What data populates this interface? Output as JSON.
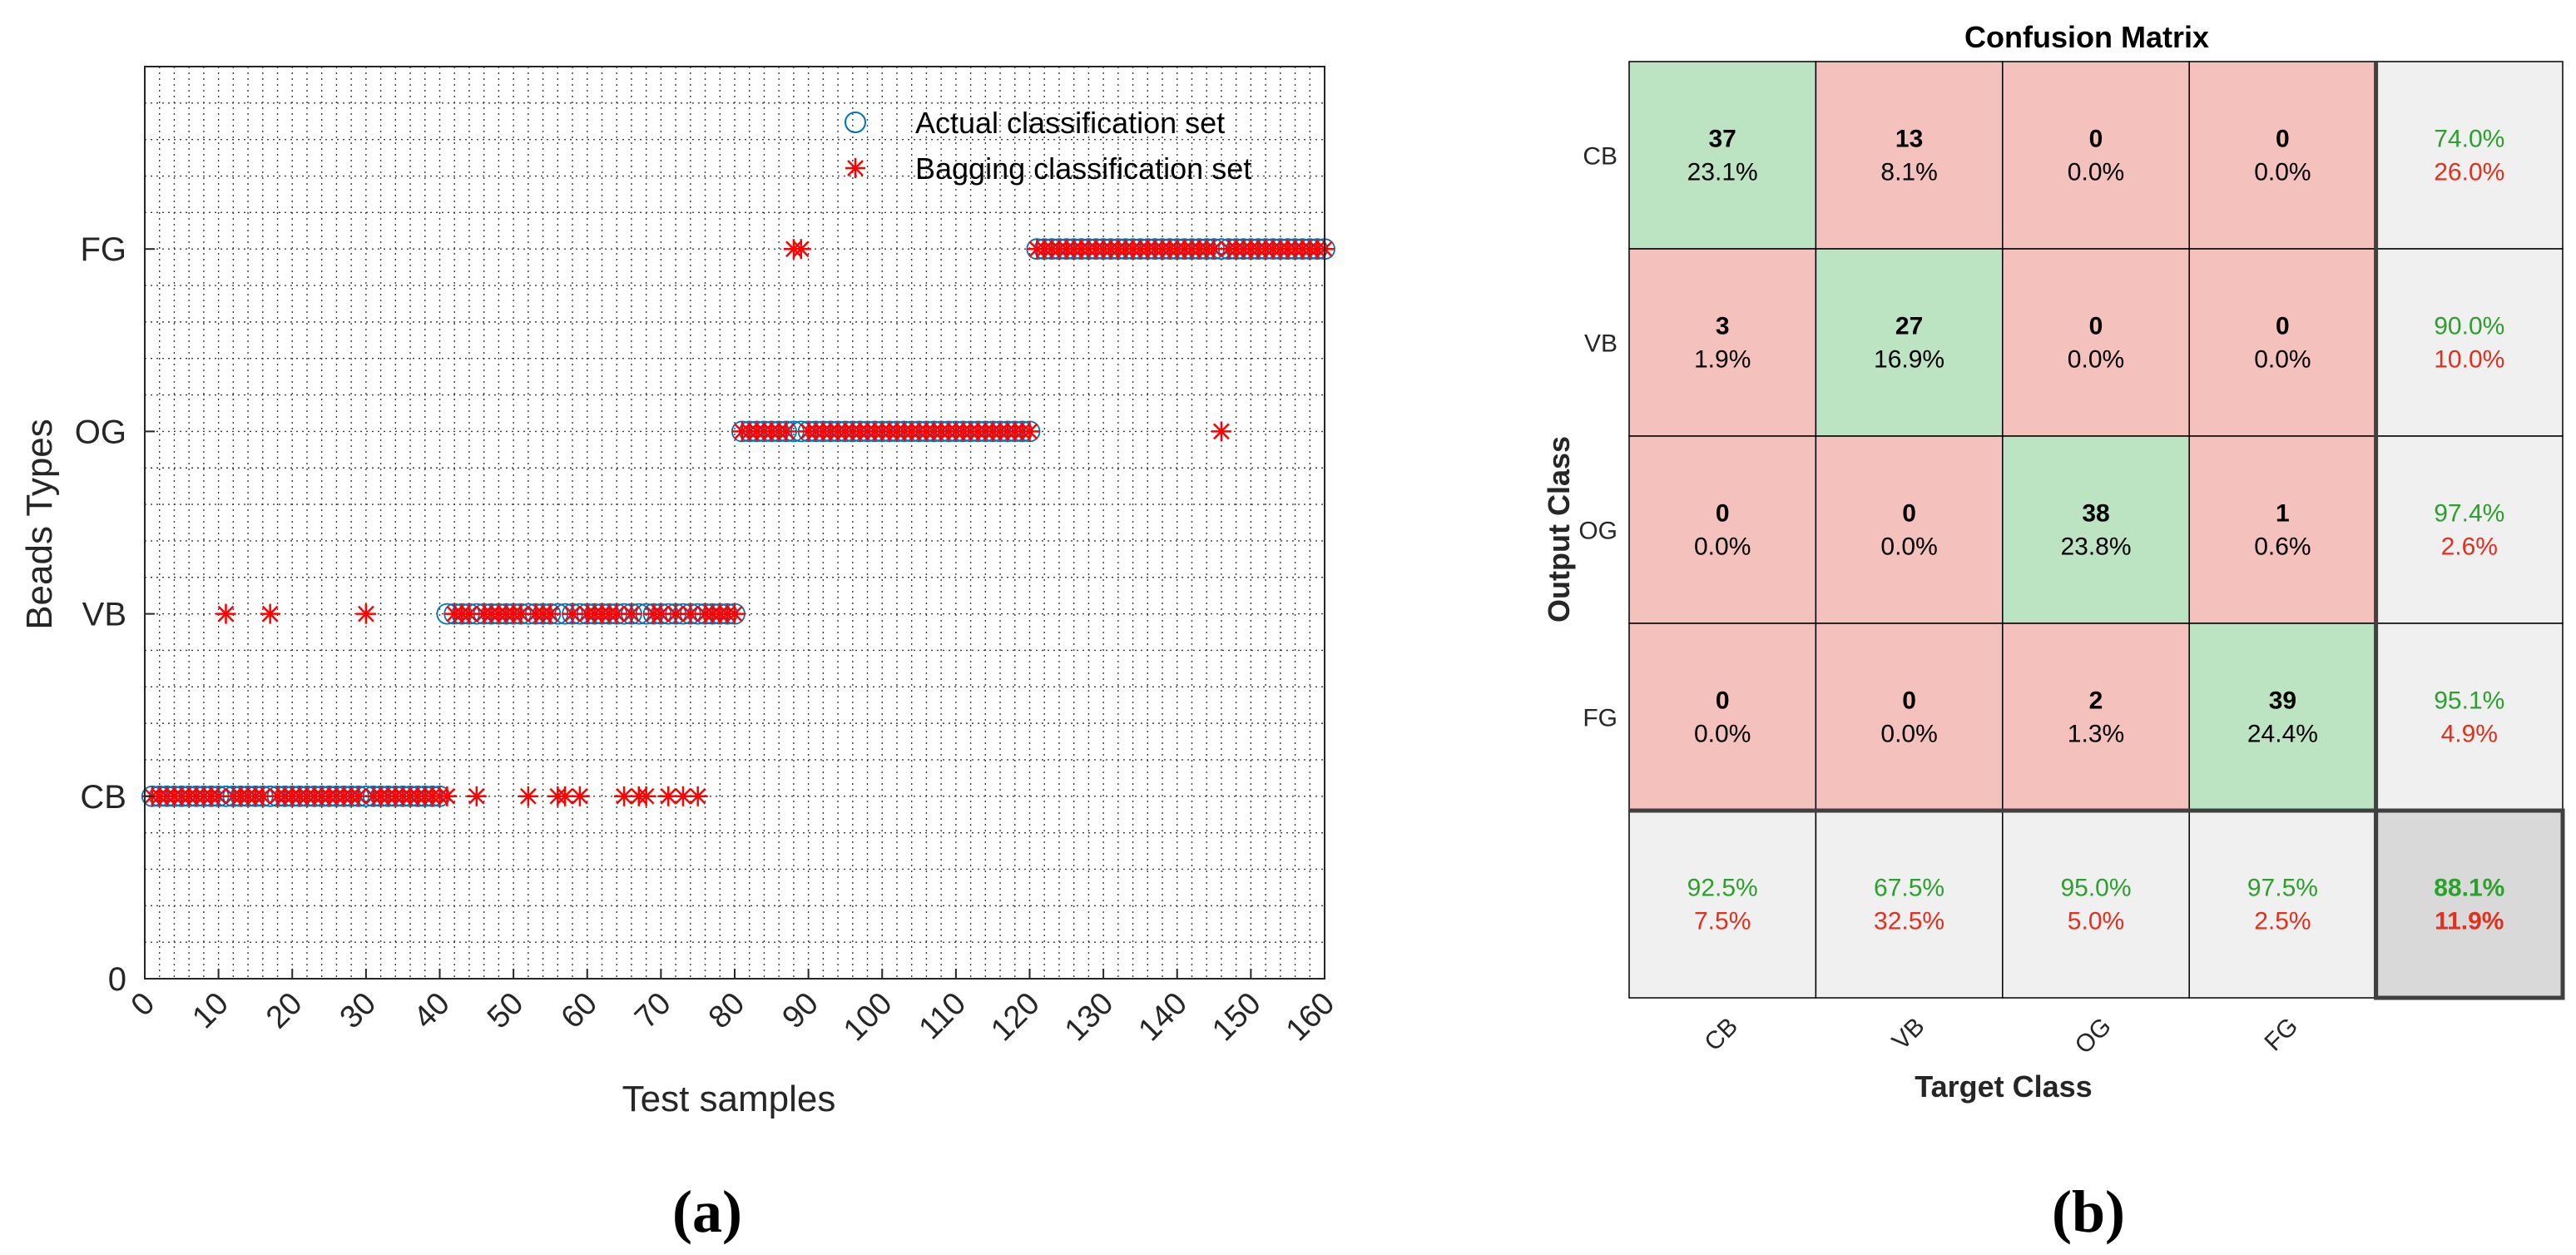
{
  "panels": {
    "a": "(a)",
    "b": "(b)"
  },
  "chart_data": [
    {
      "type": "scatter",
      "xlabel": "Test samples",
      "ylabel": "Beads Types",
      "xlim": [
        0,
        160
      ],
      "ylim": [
        0,
        5
      ],
      "xticks": [
        "0",
        "10",
        "20",
        "30",
        "40",
        "50",
        "60",
        "70",
        "80",
        "90",
        "100",
        "110",
        "120",
        "130",
        "140",
        "150",
        "160"
      ],
      "yticks": [
        {
          "value": 0,
          "label": "0"
        },
        {
          "value": 1,
          "label": "CB"
        },
        {
          "value": 2,
          "label": "VB"
        },
        {
          "value": 3,
          "label": "OG"
        },
        {
          "value": 4,
          "label": "FG"
        }
      ],
      "grid": true,
      "legend_position": "top-right",
      "series": [
        {
          "name": "Actual classification set",
          "marker": "circle",
          "color": "#0072BD",
          "runs": [
            {
              "x_from": 1,
              "x_to": 40,
              "y": 1
            },
            {
              "x_from": 41,
              "x_to": 80,
              "y": 2
            },
            {
              "x_from": 81,
              "x_to": 120,
              "y": 3
            },
            {
              "x_from": 121,
              "x_to": 160,
              "y": 4
            }
          ]
        },
        {
          "name": "Bagging classification set",
          "marker": "asterisk",
          "color": "#FF0000",
          "points": [
            [
              1,
              1
            ],
            [
              2,
              1
            ],
            [
              3,
              1
            ],
            [
              4,
              1
            ],
            [
              5,
              1
            ],
            [
              6,
              1
            ],
            [
              7,
              1
            ],
            [
              8,
              1
            ],
            [
              9,
              1
            ],
            [
              10,
              1
            ],
            [
              12,
              1
            ],
            [
              13,
              1
            ],
            [
              14,
              1
            ],
            [
              15,
              1
            ],
            [
              16,
              1
            ],
            [
              18,
              1
            ],
            [
              19,
              1
            ],
            [
              20,
              1
            ],
            [
              21,
              1
            ],
            [
              22,
              1
            ],
            [
              23,
              1
            ],
            [
              24,
              1
            ],
            [
              25,
              1
            ],
            [
              26,
              1
            ],
            [
              27,
              1
            ],
            [
              28,
              1
            ],
            [
              29,
              1
            ],
            [
              31,
              1
            ],
            [
              32,
              1
            ],
            [
              33,
              1
            ],
            [
              34,
              1
            ],
            [
              35,
              1
            ],
            [
              36,
              1
            ],
            [
              37,
              1
            ],
            [
              38,
              1
            ],
            [
              39,
              1
            ],
            [
              40,
              1
            ],
            [
              41,
              1
            ],
            [
              45,
              1
            ],
            [
              52,
              1
            ],
            [
              56,
              1
            ],
            [
              57,
              1
            ],
            [
              59,
              1
            ],
            [
              65,
              1
            ],
            [
              67,
              1
            ],
            [
              68,
              1
            ],
            [
              71,
              1
            ],
            [
              73,
              1
            ],
            [
              75,
              1
            ],
            [
              11,
              2
            ],
            [
              17,
              2
            ],
            [
              30,
              2
            ],
            [
              42,
              2
            ],
            [
              43,
              2
            ],
            [
              44,
              2
            ],
            [
              46,
              2
            ],
            [
              47,
              2
            ],
            [
              48,
              2
            ],
            [
              49,
              2
            ],
            [
              50,
              2
            ],
            [
              51,
              2
            ],
            [
              53,
              2
            ],
            [
              54,
              2
            ],
            [
              55,
              2
            ],
            [
              58,
              2
            ],
            [
              60,
              2
            ],
            [
              61,
              2
            ],
            [
              62,
              2
            ],
            [
              63,
              2
            ],
            [
              64,
              2
            ],
            [
              66,
              2
            ],
            [
              69,
              2
            ],
            [
              70,
              2
            ],
            [
              72,
              2
            ],
            [
              74,
              2
            ],
            [
              76,
              2
            ],
            [
              77,
              2
            ],
            [
              78,
              2
            ],
            [
              79,
              2
            ],
            [
              80,
              2
            ],
            [
              81,
              3
            ],
            [
              82,
              3
            ],
            [
              83,
              3
            ],
            [
              84,
              3
            ],
            [
              85,
              3
            ],
            [
              86,
              3
            ],
            [
              87,
              3
            ],
            [
              90,
              3
            ],
            [
              91,
              3
            ],
            [
              92,
              3
            ],
            [
              93,
              3
            ],
            [
              94,
              3
            ],
            [
              95,
              3
            ],
            [
              96,
              3
            ],
            [
              97,
              3
            ],
            [
              98,
              3
            ],
            [
              99,
              3
            ],
            [
              100,
              3
            ],
            [
              101,
              3
            ],
            [
              102,
              3
            ],
            [
              103,
              3
            ],
            [
              104,
              3
            ],
            [
              105,
              3
            ],
            [
              106,
              3
            ],
            [
              107,
              3
            ],
            [
              108,
              3
            ],
            [
              109,
              3
            ],
            [
              110,
              3
            ],
            [
              111,
              3
            ],
            [
              112,
              3
            ],
            [
              113,
              3
            ],
            [
              114,
              3
            ],
            [
              115,
              3
            ],
            [
              116,
              3
            ],
            [
              117,
              3
            ],
            [
              118,
              3
            ],
            [
              119,
              3
            ],
            [
              120,
              3
            ],
            [
              146,
              3
            ],
            [
              88,
              4
            ],
            [
              89,
              4
            ],
            [
              121,
              4
            ],
            [
              122,
              4
            ],
            [
              123,
              4
            ],
            [
              124,
              4
            ],
            [
              125,
              4
            ],
            [
              126,
              4
            ],
            [
              127,
              4
            ],
            [
              128,
              4
            ],
            [
              129,
              4
            ],
            [
              130,
              4
            ],
            [
              131,
              4
            ],
            [
              132,
              4
            ],
            [
              133,
              4
            ],
            [
              134,
              4
            ],
            [
              135,
              4
            ],
            [
              136,
              4
            ],
            [
              137,
              4
            ],
            [
              138,
              4
            ],
            [
              139,
              4
            ],
            [
              140,
              4
            ],
            [
              141,
              4
            ],
            [
              142,
              4
            ],
            [
              143,
              4
            ],
            [
              144,
              4
            ],
            [
              145,
              4
            ],
            [
              147,
              4
            ],
            [
              148,
              4
            ],
            [
              149,
              4
            ],
            [
              150,
              4
            ],
            [
              151,
              4
            ],
            [
              152,
              4
            ],
            [
              153,
              4
            ],
            [
              154,
              4
            ],
            [
              155,
              4
            ],
            [
              156,
              4
            ],
            [
              157,
              4
            ],
            [
              158,
              4
            ],
            [
              159,
              4
            ],
            [
              160,
              4
            ]
          ]
        }
      ]
    },
    {
      "type": "heatmap",
      "title": "Confusion Matrix",
      "xlabel": "Target Class",
      "ylabel": "Output Class",
      "classes": [
        "CB",
        "VB",
        "OG",
        "FG"
      ],
      "counts": [
        [
          37,
          13,
          0,
          0
        ],
        [
          3,
          27,
          0,
          0
        ],
        [
          0,
          0,
          38,
          1
        ],
        [
          0,
          0,
          2,
          39
        ]
      ],
      "percents": [
        [
          "23.1%",
          "8.1%",
          "0.0%",
          "0.0%"
        ],
        [
          "1.9%",
          "16.9%",
          "0.0%",
          "0.0%"
        ],
        [
          "0.0%",
          "0.0%",
          "23.8%",
          "0.6%"
        ],
        [
          "0.0%",
          "0.0%",
          "1.3%",
          "24.4%"
        ]
      ],
      "row_summary": [
        {
          "correct": "74.0%",
          "wrong": "26.0%"
        },
        {
          "correct": "90.0%",
          "wrong": "10.0%"
        },
        {
          "correct": "97.4%",
          "wrong": "2.6%"
        },
        {
          "correct": "95.1%",
          "wrong": "4.9%"
        }
      ],
      "col_summary": [
        {
          "correct": "92.5%",
          "wrong": "7.5%"
        },
        {
          "correct": "67.5%",
          "wrong": "32.5%"
        },
        {
          "correct": "95.0%",
          "wrong": "5.0%"
        },
        {
          "correct": "97.5%",
          "wrong": "2.5%"
        }
      ],
      "overall": {
        "correct": "88.1%",
        "wrong": "11.9%"
      },
      "colors": {
        "diagonal": "#BCE4C2",
        "off_diagonal": "#F5C1BC",
        "summary": "#F0F0F0",
        "overall": "#D9D9D9",
        "correct_text": "#2CA02C",
        "wrong_text": "#E0301E"
      }
    }
  ]
}
